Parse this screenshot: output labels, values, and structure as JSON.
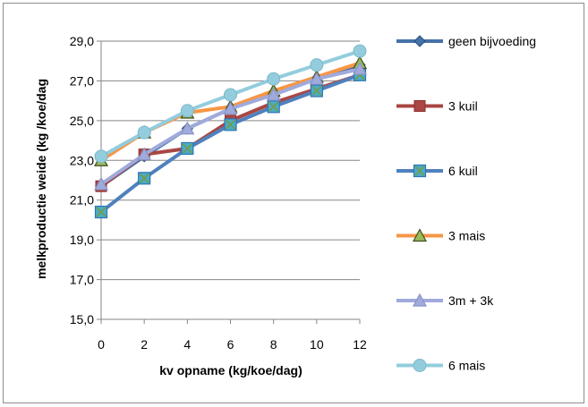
{
  "chart_data": {
    "type": "line",
    "title": "",
    "xlabel": "kv opname (kg/koe/dag)",
    "ylabel": "melkproductie weide  (kg /koe/dag",
    "x": [
      0,
      2,
      4,
      6,
      8,
      10,
      12
    ],
    "x_tick_labels": [
      "0",
      "2",
      "4",
      "6",
      "8",
      "10",
      "12"
    ],
    "ylim": [
      15.0,
      29.0
    ],
    "y_ticks": [
      15.0,
      17.0,
      19.0,
      21.0,
      23.0,
      25.0,
      27.0,
      29.0
    ],
    "y_tick_labels": [
      "15,0",
      "17,0",
      "19,0",
      "21,0",
      "23,0",
      "25,0",
      "27,0",
      "29,0"
    ],
    "grid": true,
    "legend_position": "right",
    "series": [
      {
        "name": "geen bijvoeding",
        "color": "#4572A7",
        "marker": "diamond",
        "values": [
          21.7,
          23.2,
          24.6,
          25.6,
          26.4,
          27.1,
          27.8
        ]
      },
      {
        "name": "3 kuil",
        "color": "#AA4643",
        "marker": "square",
        "values": [
          21.7,
          23.3,
          23.6,
          25.0,
          25.9,
          26.6,
          27.3
        ]
      },
      {
        "name": "6 kuil",
        "color": "#4F81BD",
        "marker": "x-square",
        "values": [
          20.4,
          22.1,
          23.6,
          24.8,
          25.7,
          26.5,
          27.3
        ]
      },
      {
        "name": "3 mais",
        "color": "#F79646",
        "marker": "triangle",
        "values": [
          23.0,
          24.4,
          25.4,
          25.7,
          26.5,
          27.2,
          27.9
        ]
      },
      {
        "name": "3m + 3k",
        "color": "#A0AADC",
        "marker": "triangle",
        "values": [
          21.8,
          23.3,
          24.6,
          25.6,
          26.3,
          27.1,
          27.6
        ]
      },
      {
        "name": "6 mais",
        "color": "#93CDDD",
        "marker": "circle",
        "values": [
          23.2,
          24.4,
          25.5,
          26.3,
          27.1,
          27.8,
          28.5
        ]
      }
    ]
  }
}
